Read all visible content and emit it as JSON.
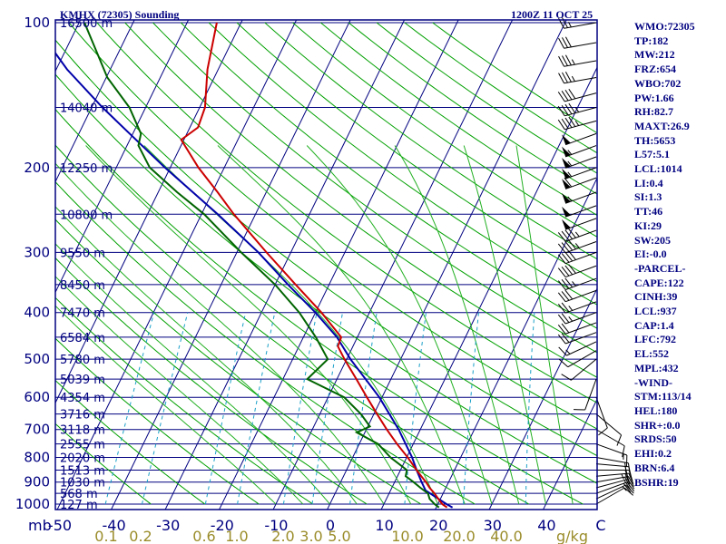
{
  "header": {
    "station": "KMHX (72305) Sounding",
    "time": "1200Z 11 OCT 25"
  },
  "colors": {
    "frame": "#000080",
    "isotherm": "#000080",
    "isobar": "#000080",
    "dry_adiabat": "#00a000",
    "moist_adiabat": "#22b022",
    "mixing_ratio": "#8a8a4a",
    "temperature": "#cc0000",
    "dewpoint": "#006400",
    "parcel": "#0000aa",
    "wind_barb": "#000000"
  },
  "chart_data": {
    "type": "line",
    "diagram": "Skew-T log-P",
    "xlabel": "C",
    "ylabel": "mb",
    "pressure_range_mb": [
      1000,
      100
    ],
    "temperature_range_c": [
      -50,
      50
    ],
    "pressure_ticks": [
      "1000",
      "900",
      "800",
      "700",
      "600",
      "500",
      "400",
      "300",
      "200",
      "100"
    ],
    "temperature_ticks": [
      "-50",
      "-40",
      "-30",
      "-20",
      "-10",
      "0",
      "10",
      "20",
      "30",
      "40",
      "C"
    ],
    "height_labels": [
      {
        "p": 100,
        "label": "16500 m"
      },
      {
        "p": 150,
        "label": "14040 m"
      },
      {
        "p": 200,
        "label": "12250 m"
      },
      {
        "p": 250,
        "label": "10800 m"
      },
      {
        "p": 300,
        "label": "9550 m"
      },
      {
        "p": 350,
        "label": "8450 m"
      },
      {
        "p": 400,
        "label": "7470 m"
      },
      {
        "p": 450,
        "label": "6584 m"
      },
      {
        "p": 500,
        "label": "5780 m"
      },
      {
        "p": 550,
        "label": "5039 m"
      },
      {
        "p": 600,
        "label": "4354 m"
      },
      {
        "p": 650,
        "label": "3716 m"
      },
      {
        "p": 700,
        "label": "3118 m"
      },
      {
        "p": 750,
        "label": "2555 m"
      },
      {
        "p": 800,
        "label": "2020 m"
      },
      {
        "p": 850,
        "label": "1513 m"
      },
      {
        "p": 900,
        "label": "1030 m"
      },
      {
        "p": 950,
        "label": "568 m"
      },
      {
        "p": 1000,
        "label": "127 m"
      }
    ],
    "mixing_ratio_labels": [
      "0.1",
      "0.2",
      "0.6",
      "1.0",
      "2.0",
      "3.0",
      "5.0",
      "10.0",
      "20.0",
      "40.0"
    ],
    "mixing_ratio_values": [
      0.1,
      0.2,
      0.6,
      1.0,
      2.0,
      3.0,
      5.0,
      10.0,
      20.0,
      40.0
    ],
    "mixing_ratio_unit": "g/kg",
    "series": [
      {
        "name": "Temperature",
        "points": [
          {
            "p": 1016,
            "t": 22.0
          },
          {
            "p": 1000,
            "t": 20.8
          },
          {
            "p": 975,
            "t": 19.6
          },
          {
            "p": 950,
            "t": 18.4
          },
          {
            "p": 925,
            "t": 17.0
          },
          {
            "p": 900,
            "t": 15.8
          },
          {
            "p": 875,
            "t": 14.4
          },
          {
            "p": 850,
            "t": 13.0
          },
          {
            "p": 800,
            "t": 10.2
          },
          {
            "p": 750,
            "t": 7.0
          },
          {
            "p": 700,
            "t": 3.8
          },
          {
            "p": 650,
            "t": 0.6
          },
          {
            "p": 600,
            "t": -2.8
          },
          {
            "p": 550,
            "t": -6.4
          },
          {
            "p": 500,
            "t": -10.4
          },
          {
            "p": 470,
            "t": -12.8
          },
          {
            "p": 450,
            "t": -13.0
          },
          {
            "p": 400,
            "t": -18.9
          },
          {
            "p": 350,
            "t": -26.2
          },
          {
            "p": 300,
            "t": -34.5
          },
          {
            "p": 250,
            "t": -44.0
          },
          {
            "p": 225,
            "t": -49.0
          },
          {
            "p": 200,
            "t": -54.8
          },
          {
            "p": 175,
            "t": -60.5
          },
          {
            "p": 165,
            "t": -58.5
          },
          {
            "p": 150,
            "t": -59.0
          },
          {
            "p": 125,
            "t": -62.0
          },
          {
            "p": 100,
            "t": -64.5
          }
        ]
      },
      {
        "name": "Dewpoint",
        "points": [
          {
            "p": 1016,
            "t": 20.5
          },
          {
            "p": 1000,
            "t": 19.4
          },
          {
            "p": 975,
            "t": 18.0
          },
          {
            "p": 950,
            "t": 17.2
          },
          {
            "p": 925,
            "t": 15.3
          },
          {
            "p": 900,
            "t": 13.5
          },
          {
            "p": 875,
            "t": 11.5
          },
          {
            "p": 850,
            "t": 11.2
          },
          {
            "p": 800,
            "t": 7.0
          },
          {
            "p": 750,
            "t": 3.5
          },
          {
            "p": 710,
            "t": -1.5
          },
          {
            "p": 690,
            "t": 0.4
          },
          {
            "p": 650,
            "t": -2.4
          },
          {
            "p": 600,
            "t": -7.0
          },
          {
            "p": 550,
            "t": -15.5
          },
          {
            "p": 500,
            "t": -13.5
          },
          {
            "p": 450,
            "t": -17.7
          },
          {
            "p": 400,
            "t": -23.0
          },
          {
            "p": 350,
            "t": -30.0
          },
          {
            "p": 300,
            "t": -39.2
          },
          {
            "p": 250,
            "t": -49.5
          },
          {
            "p": 225,
            "t": -56.5
          },
          {
            "p": 200,
            "t": -63.8
          },
          {
            "p": 180,
            "t": -67.9
          },
          {
            "p": 170,
            "t": -68.5
          },
          {
            "p": 150,
            "t": -73.0
          },
          {
            "p": 130,
            "t": -79.8
          },
          {
            "p": 100,
            "t": -89.0
          }
        ]
      },
      {
        "name": "Parcel",
        "points": [
          {
            "p": 1016,
            "t": 23.0
          },
          {
            "p": 1000,
            "t": 21.6
          },
          {
            "p": 937,
            "t": 16.5
          },
          {
            "p": 900,
            "t": 15.0
          },
          {
            "p": 850,
            "t": 13.0
          },
          {
            "p": 800,
            "t": 11.0
          },
          {
            "p": 700,
            "t": 6.0
          },
          {
            "p": 600,
            "t": -0.5
          },
          {
            "p": 500,
            "t": -9.3
          },
          {
            "p": 450,
            "t": -13.8
          },
          {
            "p": 400,
            "t": -20.0
          },
          {
            "p": 350,
            "t": -27.6
          },
          {
            "p": 300,
            "t": -36.0
          },
          {
            "p": 250,
            "t": -47.0
          },
          {
            "p": 200,
            "t": -61.0
          },
          {
            "p": 150,
            "t": -78.0
          },
          {
            "p": 125,
            "t": -88.0
          },
          {
            "p": 110,
            "t": -94.0
          }
        ]
      }
    ],
    "wind_profile_kt": [
      {
        "p": 1000,
        "dir": 60,
        "spd": 10
      },
      {
        "p": 975,
        "dir": 65,
        "spd": 15
      },
      {
        "p": 950,
        "dir": 70,
        "spd": 20
      },
      {
        "p": 925,
        "dir": 75,
        "spd": 20
      },
      {
        "p": 900,
        "dir": 80,
        "spd": 20
      },
      {
        "p": 875,
        "dir": 85,
        "spd": 25
      },
      {
        "p": 850,
        "dir": 90,
        "spd": 20
      },
      {
        "p": 825,
        "dir": 95,
        "spd": 20
      },
      {
        "p": 800,
        "dir": 100,
        "spd": 20
      },
      {
        "p": 750,
        "dir": 110,
        "spd": 15
      },
      {
        "p": 700,
        "dir": 120,
        "spd": 10
      },
      {
        "p": 650,
        "dir": 130,
        "spd": 10
      },
      {
        "p": 600,
        "dir": 160,
        "spd": 10
      },
      {
        "p": 550,
        "dir": 200,
        "spd": 10
      },
      {
        "p": 500,
        "dir": 230,
        "spd": 10
      },
      {
        "p": 480,
        "dir": 240,
        "spd": 10
      },
      {
        "p": 460,
        "dir": 245,
        "spd": 15
      },
      {
        "p": 440,
        "dir": 250,
        "spd": 20
      },
      {
        "p": 420,
        "dir": 250,
        "spd": 20
      },
      {
        "p": 400,
        "dir": 250,
        "spd": 25
      },
      {
        "p": 380,
        "dir": 250,
        "spd": 25
      },
      {
        "p": 360,
        "dir": 250,
        "spd": 30
      },
      {
        "p": 340,
        "dir": 250,
        "spd": 35
      },
      {
        "p": 320,
        "dir": 250,
        "spd": 40
      },
      {
        "p": 300,
        "dir": 250,
        "spd": 40
      },
      {
        "p": 285,
        "dir": 250,
        "spd": 45
      },
      {
        "p": 270,
        "dir": 250,
        "spd": 45
      },
      {
        "p": 255,
        "dir": 250,
        "spd": 50
      },
      {
        "p": 240,
        "dir": 250,
        "spd": 50
      },
      {
        "p": 225,
        "dir": 250,
        "spd": 55
      },
      {
        "p": 210,
        "dir": 250,
        "spd": 60
      },
      {
        "p": 200,
        "dir": 250,
        "spd": 55
      },
      {
        "p": 190,
        "dir": 250,
        "spd": 55
      },
      {
        "p": 180,
        "dir": 250,
        "spd": 55
      },
      {
        "p": 170,
        "dir": 250,
        "spd": 50
      },
      {
        "p": 160,
        "dir": 255,
        "spd": 45
      },
      {
        "p": 150,
        "dir": 255,
        "spd": 45
      },
      {
        "p": 140,
        "dir": 255,
        "spd": 40
      },
      {
        "p": 130,
        "dir": 260,
        "spd": 35
      },
      {
        "p": 120,
        "dir": 260,
        "spd": 35
      },
      {
        "p": 110,
        "dir": 260,
        "spd": 30
      },
      {
        "p": 100,
        "dir": 260,
        "spd": 25
      }
    ]
  },
  "indices": [
    "WMO:72305",
    "TP:182",
    "MW:212",
    "FRZ:654",
    "WBO:702",
    "PW:1.66",
    "RH:82.7",
    "MAXT:26.9",
    "TH:5653",
    "L57:5.1",
    "LCL:1014",
    "LI:0.4",
    "SI:1.3",
    "TT:46",
    "KI:29",
    "SW:205",
    "EI:-0.0",
    "-PARCEL-",
    "CAPE:122",
    "CINH:39",
    "LCL:937",
    "CAP:1.4",
    "LFC:792",
    "EL:552",
    "MPL:432",
    "-WIND-",
    "STM:113/14",
    "HEL:180",
    "SHR+:0.0",
    "SRDS:50",
    "EHI:0.2",
    "BRN:6.4",
    "BSHR:19"
  ]
}
